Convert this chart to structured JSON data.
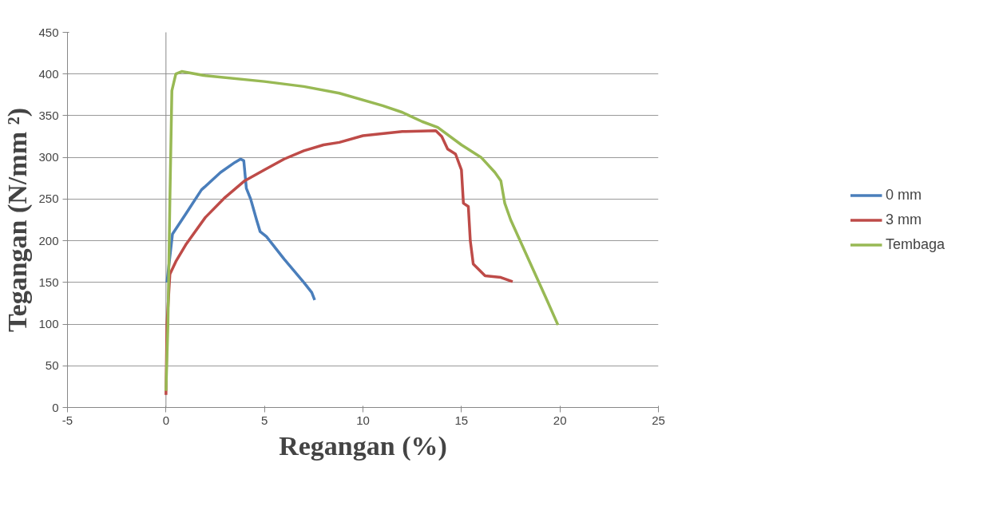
{
  "chart_data": {
    "type": "line",
    "xlabel": "Regangan (%)",
    "ylabel": "Tegangan (N/mm ²)",
    "xlim": [
      -5,
      25
    ],
    "xticks": [
      -5,
      0,
      5,
      10,
      15,
      20,
      25
    ],
    "ylim": [
      0,
      450
    ],
    "yticks": [
      0,
      50,
      100,
      150,
      200,
      250,
      300,
      350,
      400,
      450
    ],
    "grid": "y",
    "legend": "right",
    "marker": "none",
    "line_style": "solid",
    "series": [
      {
        "name": "0 mm",
        "color": "#4a7ebb",
        "x": [
          0.05,
          0.33,
          1,
          1.8,
          2.77,
          3.5,
          3.79,
          3.95,
          4.08,
          4.3,
          4.6,
          4.78,
          5.1,
          6,
          7,
          7.4,
          7.55
        ],
        "values": [
          150,
          208,
          232,
          261,
          282,
          294,
          298,
          296,
          263,
          250,
          225,
          211,
          205,
          178,
          150,
          138,
          129
        ]
      },
      {
        "name": "3 mm",
        "color": "#be4b48",
        "x": [
          0,
          0.05,
          0.2,
          0.5,
          1,
          2,
          3,
          4,
          5,
          6,
          7,
          8,
          8.8,
          10,
          12,
          13.7,
          14,
          14.3,
          14.7,
          15,
          15.1,
          15.35,
          15.45,
          15.6,
          16.2,
          17,
          17.6
        ],
        "values": [
          15,
          100,
          160,
          175,
          195,
          228,
          252,
          272,
          285,
          298,
          308,
          315,
          318,
          326,
          331,
          332,
          325,
          310,
          304,
          285,
          245,
          241,
          200,
          172,
          158,
          156,
          151
        ]
      },
      {
        "name": "Tembaga",
        "color": "#98b954",
        "x": [
          0,
          0.1,
          0.2,
          0.3,
          0.5,
          0.8,
          2,
          5,
          7,
          8.8,
          11,
          12,
          13,
          13.8,
          15,
          16,
          16.7,
          17,
          17.2,
          17.5,
          19.3,
          19.9
        ],
        "values": [
          20,
          100,
          250,
          380,
          400,
          403,
          398,
          391,
          385,
          377,
          362,
          354,
          343,
          336,
          315,
          300,
          282,
          272,
          245,
          225,
          131,
          99
        ]
      }
    ]
  }
}
